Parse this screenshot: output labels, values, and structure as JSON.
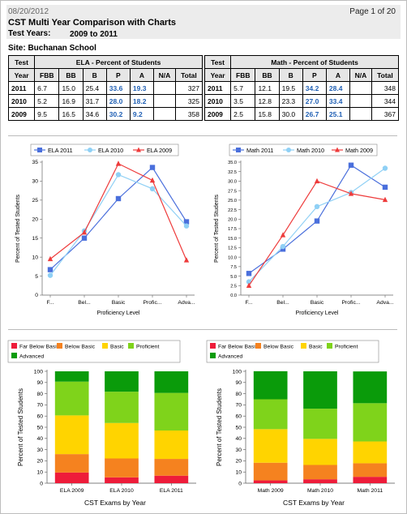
{
  "header": {
    "date": "08/20/2012",
    "page_info": "Page 1 of 20",
    "title": "CST Multi Year Comparison with Charts",
    "test_years_label": "Test Years:",
    "test_years_value": "2009 to 2011",
    "site": "Site: Buchanan School"
  },
  "tables": {
    "ela": {
      "heading": "ELA - Percent of Students",
      "test_label_1": "Test",
      "test_label_2": "Year",
      "columns": [
        "FBB",
        "BB",
        "B",
        "P",
        "A",
        "N/A",
        "Total"
      ],
      "rows": [
        {
          "year": "2011",
          "FBB": "6.7",
          "BB": "15.0",
          "B": "25.4",
          "P": "33.6",
          "A": "19.3",
          "NA": "",
          "Total": "327"
        },
        {
          "year": "2010",
          "FBB": "5.2",
          "BB": "16.9",
          "B": "31.7",
          "P": "28.0",
          "A": "18.2",
          "NA": "",
          "Total": "325"
        },
        {
          "year": "2009",
          "FBB": "9.5",
          "BB": "16.5",
          "B": "34.6",
          "P": "30.2",
          "A": "9.2",
          "NA": "",
          "Total": "358"
        }
      ]
    },
    "math": {
      "heading": "Math - Percent of Students",
      "test_label_1": "Test",
      "test_label_2": "Year",
      "columns": [
        "FBB",
        "BB",
        "B",
        "P",
        "A",
        "N/A",
        "Total"
      ],
      "rows": [
        {
          "year": "2011",
          "FBB": "5.7",
          "BB": "12.1",
          "B": "19.5",
          "P": "34.2",
          "A": "28.4",
          "NA": "",
          "Total": "348"
        },
        {
          "year": "2010",
          "FBB": "3.5",
          "BB": "12.8",
          "B": "23.3",
          "P": "27.0",
          "A": "33.4",
          "NA": "",
          "Total": "344"
        },
        {
          "year": "2009",
          "FBB": "2.5",
          "BB": "15.8",
          "B": "30.0",
          "P": "26.7",
          "A": "25.1",
          "NA": "",
          "Total": "367"
        }
      ]
    }
  },
  "chart_data": [
    {
      "type": "line",
      "categories": [
        "F...",
        "Bel...",
        "Basic",
        "Profic...",
        "Adva..."
      ],
      "series": [
        {
          "name": "ELA 2011",
          "color": "#4a6fdc",
          "marker": "square",
          "values": [
            6.7,
            15.0,
            25.4,
            33.6,
            19.3
          ]
        },
        {
          "name": "ELA 2010",
          "color": "#8fd0f5",
          "marker": "circle",
          "values": [
            5.2,
            16.9,
            31.7,
            28.0,
            18.2
          ]
        },
        {
          "name": "ELA 2009",
          "color": "#ee3b3b",
          "marker": "triangle",
          "values": [
            9.5,
            16.5,
            34.6,
            30.2,
            9.2
          ]
        }
      ],
      "xlabel": "Proficiency Level",
      "ylabel": "Percent of Tested Students",
      "ylim": [
        0,
        35
      ],
      "yticks": [
        "0",
        "5",
        "10",
        "15",
        "20",
        "25",
        "30",
        "35"
      ],
      "legend": "top"
    },
    {
      "type": "line",
      "categories": [
        "F...",
        "Bel...",
        "Basic",
        "Profic...",
        "Adva..."
      ],
      "series": [
        {
          "name": "Math 2011",
          "color": "#4a6fdc",
          "marker": "square",
          "values": [
            5.7,
            12.1,
            19.5,
            34.2,
            28.4
          ]
        },
        {
          "name": "Math 2010",
          "color": "#8fd0f5",
          "marker": "circle",
          "values": [
            3.5,
            12.8,
            23.3,
            27.0,
            33.4
          ]
        },
        {
          "name": "Math 2009",
          "color": "#ee3b3b",
          "marker": "triangle",
          "values": [
            2.5,
            15.8,
            30.0,
            26.7,
            25.1
          ]
        }
      ],
      "xlabel": "Proficiency Level",
      "ylabel": "Percent of Tested Students",
      "ylim": [
        0,
        35
      ],
      "yticks": [
        "0.0",
        "2.5",
        "5.0",
        "7.5",
        "10.0",
        "12.5",
        "15.0",
        "17.5",
        "20.0",
        "22.5",
        "25.0",
        "27.5",
        "30.0",
        "32.5",
        "35.0"
      ],
      "legend": "top"
    },
    {
      "type": "bar",
      "stacked": true,
      "categories": [
        "ELA 2009",
        "ELA 2010",
        "ELA 2011"
      ],
      "series": [
        {
          "name": "Far Below Basic",
          "color": "#ee1c3a",
          "values": [
            9.5,
            5.2,
            6.7
          ]
        },
        {
          "name": "Below Basic",
          "color": "#f5821f",
          "values": [
            16.5,
            16.9,
            15.0
          ]
        },
        {
          "name": "Basic",
          "color": "#ffd400",
          "values": [
            34.6,
            31.7,
            25.4
          ]
        },
        {
          "name": "Proficient",
          "color": "#7fd31b",
          "values": [
            30.2,
            28.0,
            33.6
          ]
        },
        {
          "name": "Advanced",
          "color": "#0a9b0a",
          "values": [
            9.2,
            18.2,
            19.3
          ]
        }
      ],
      "xlabel": "CST Exams by Year",
      "ylabel": "Percent of Tested Students",
      "ylim": [
        0,
        100
      ],
      "yticks": [
        "0",
        "10",
        "20",
        "30",
        "40",
        "50",
        "60",
        "70",
        "80",
        "90",
        "100"
      ],
      "legend": "top"
    },
    {
      "type": "bar",
      "stacked": true,
      "categories": [
        "Math 2009",
        "Math 2010",
        "Math 2011"
      ],
      "series": [
        {
          "name": "Far Below Basic",
          "color": "#ee1c3a",
          "values": [
            2.5,
            3.5,
            5.7
          ]
        },
        {
          "name": "Below Basic",
          "color": "#f5821f",
          "values": [
            15.8,
            12.8,
            12.1
          ]
        },
        {
          "name": "Basic",
          "color": "#ffd400",
          "values": [
            30.0,
            23.3,
            19.5
          ]
        },
        {
          "name": "Proficient",
          "color": "#7fd31b",
          "values": [
            26.7,
            27.0,
            34.2
          ]
        },
        {
          "name": "Advanced",
          "color": "#0a9b0a",
          "values": [
            25.1,
            33.4,
            28.4
          ]
        }
      ],
      "xlabel": "CST Exams by Year",
      "ylabel": "Percent of Tested Students",
      "ylim": [
        0,
        100
      ],
      "yticks": [
        "0",
        "10",
        "20",
        "30",
        "40",
        "50",
        "60",
        "70",
        "80",
        "90",
        "100"
      ],
      "legend": "top"
    }
  ]
}
